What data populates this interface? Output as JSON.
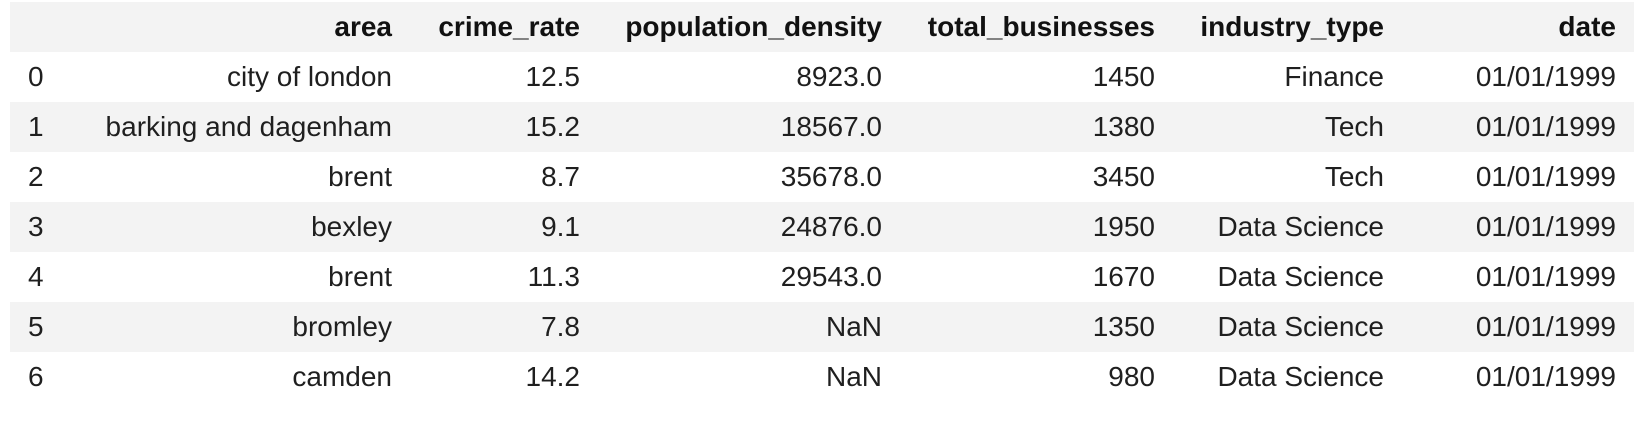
{
  "table": {
    "columns": [
      "",
      "area",
      "crime_rate",
      "population_density",
      "total_businesses",
      "industry_type",
      "date"
    ],
    "rows": [
      [
        "0",
        "city of london",
        "12.5",
        "8923.0",
        "1450",
        "Finance",
        "01/01/1999"
      ],
      [
        "1",
        "barking and dagenham",
        "15.2",
        "18567.0",
        "1380",
        "Tech",
        "01/01/1999"
      ],
      [
        "2",
        "brent",
        "8.7",
        "35678.0",
        "3450",
        "Tech",
        "01/01/1999"
      ],
      [
        "3",
        "bexley",
        "9.1",
        "24876.0",
        "1950",
        "Data Science",
        "01/01/1999"
      ],
      [
        "4",
        "brent",
        "11.3",
        "29543.0",
        "1670",
        "Data Science",
        "01/01/1999"
      ],
      [
        "5",
        "bromley",
        "7.8",
        "NaN",
        "1350",
        "Data Science",
        "01/01/1999"
      ],
      [
        "6",
        "camden",
        "14.2",
        "NaN",
        "980",
        "Data Science",
        "01/01/1999"
      ]
    ]
  },
  "colors": {
    "header_bg": "#f3f3f3",
    "stripe_bg": "#f3f3f3",
    "row_bg": "#ffffff",
    "text": "#1f1f1f"
  }
}
